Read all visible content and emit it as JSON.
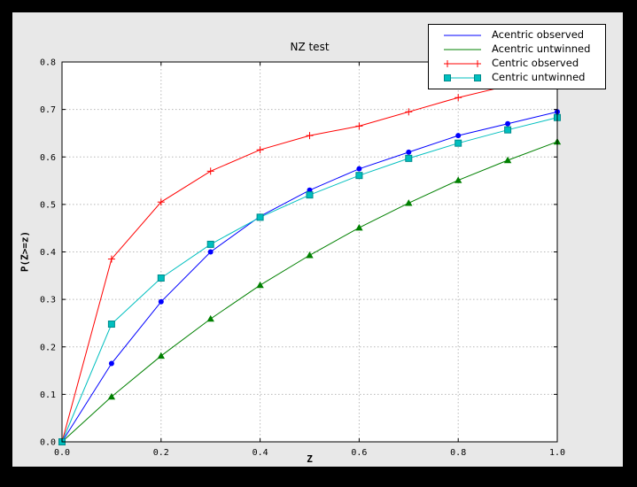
{
  "window": {
    "outer_background": "#000000",
    "figure_background": "#e8e8e8",
    "plot_background": "#ffffff",
    "grid_color": "#b8b8b8",
    "frame_color": "#000000"
  },
  "chart_data": {
    "type": "line",
    "title": "NZ test",
    "xlabel": "Z",
    "ylabel": "P(Z>=z)",
    "xlim": [
      0.0,
      1.0
    ],
    "ylim": [
      0.0,
      0.8
    ],
    "xticks": [
      "0.0",
      "0.2",
      "0.4",
      "0.6",
      "0.8",
      "1.0"
    ],
    "yticks": [
      "0.0",
      "0.1",
      "0.2",
      "0.3",
      "0.4",
      "0.5",
      "0.6",
      "0.7",
      "0.8"
    ],
    "grid": true,
    "legend_position": "upper-right",
    "x": [
      0.0,
      0.1,
      0.2,
      0.3,
      0.4,
      0.5,
      0.6,
      0.7,
      0.8,
      0.9,
      1.0
    ],
    "series": [
      {
        "name": "Acentric observed",
        "color": "#0000ff",
        "marker": "circle",
        "values": [
          0.0,
          0.165,
          0.295,
          0.4,
          0.475,
          0.53,
          0.575,
          0.61,
          0.645,
          0.67,
          0.695
        ]
      },
      {
        "name": "Acentric untwinned",
        "color": "#008000",
        "marker": "triangle",
        "values": [
          0.0,
          0.095,
          0.181,
          0.259,
          0.33,
          0.393,
          0.451,
          0.503,
          0.551,
          0.593,
          0.632
        ]
      },
      {
        "name": "Centric observed",
        "color": "#ff0000",
        "marker": "plus",
        "values": [
          0.0,
          0.385,
          0.505,
          0.57,
          0.615,
          0.645,
          0.665,
          0.695,
          0.725,
          0.75,
          0.77
        ]
      },
      {
        "name": "Centric untwinned",
        "color": "#00bfbf",
        "marker": "square",
        "marker_edge": "#008b8b",
        "values": [
          0.0,
          0.248,
          0.345,
          0.416,
          0.473,
          0.52,
          0.561,
          0.597,
          0.629,
          0.657,
          0.683
        ]
      }
    ]
  }
}
